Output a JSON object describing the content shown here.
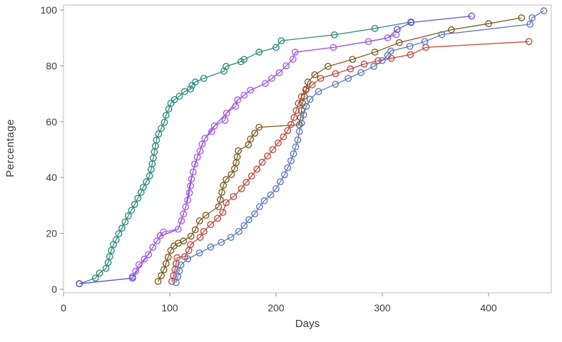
{
  "figure": {
    "xlabel": "Days",
    "ylabel": "Percentage"
  },
  "chart_data": {
    "type": "line",
    "title": "",
    "xlabel": "Days",
    "ylabel": "Percentage",
    "xlim": [
      0,
      460
    ],
    "ylim": [
      0,
      100
    ],
    "xticks": [
      0,
      100,
      200,
      300,
      400
    ],
    "yticks": [
      0,
      20,
      40,
      60,
      80,
      100
    ],
    "grid": false,
    "legend": null,
    "axis_color": "#bcbcbc",
    "tick_color": "#8f8f8f",
    "label_color": "#3b3b3b",
    "marker_style": "open-circle",
    "series": [
      {
        "id": "purple-mid",
        "color": "#6A4BD3",
        "markers": false,
        "points": [
          [
            65,
            4
          ],
          [
            91,
            19
          ],
          [
            108,
            21.5
          ],
          [
            115,
            29.5
          ],
          [
            120,
            39.5
          ],
          [
            126,
            47.3
          ],
          [
            133,
            54
          ],
          [
            142,
            58.5
          ],
          [
            153.5,
            63
          ],
          [
            164,
            67.8
          ],
          [
            176,
            71.3
          ],
          [
            190,
            73.7
          ],
          [
            203,
            77.5
          ],
          [
            216,
            82.4
          ],
          [
            218,
            84.9
          ],
          [
            254,
            86.6
          ],
          [
            287,
            88.7
          ],
          [
            305,
            90
          ],
          [
            314,
            93
          ]
        ]
      },
      {
        "id": "magenta",
        "color": "#A95DE0",
        "markers": true,
        "points": [
          [
            65,
            4.5
          ],
          [
            68,
            6.5
          ],
          [
            71,
            8.8
          ],
          [
            76,
            10.8
          ],
          [
            80,
            12.4
          ],
          [
            84,
            15
          ],
          [
            88,
            17.3
          ],
          [
            91,
            19.2
          ],
          [
            94,
            20.5
          ],
          [
            108,
            21.5
          ],
          [
            111,
            24.5
          ],
          [
            113,
            27
          ],
          [
            115,
            29.5
          ],
          [
            117,
            32
          ],
          [
            118.5,
            34.5
          ],
          [
            119.5,
            37
          ],
          [
            120.5,
            39.5
          ],
          [
            122,
            42
          ],
          [
            123.5,
            44.8
          ],
          [
            126,
            47.3
          ],
          [
            128.5,
            49.5
          ],
          [
            130.5,
            52
          ],
          [
            133,
            54
          ],
          [
            139.5,
            56.5
          ],
          [
            142,
            58.5
          ],
          [
            152,
            60.5
          ],
          [
            153.5,
            63
          ],
          [
            162,
            65.5
          ],
          [
            164,
            67.8
          ],
          [
            170,
            69.5
          ],
          [
            176,
            71.3
          ],
          [
            190,
            73.7
          ],
          [
            196,
            75.5
          ],
          [
            203,
            77.5
          ],
          [
            209.5,
            80
          ],
          [
            216,
            82.4
          ],
          [
            218,
            84.9
          ],
          [
            254,
            86.6
          ],
          [
            287,
            88.7
          ],
          [
            305,
            90
          ],
          [
            313,
            91.2
          ]
        ]
      },
      {
        "id": "teal",
        "color": "#2D8C7F",
        "markers": true,
        "points": [
          [
            15,
            2
          ],
          [
            30,
            4
          ],
          [
            34,
            5.8
          ],
          [
            40,
            7.5
          ],
          [
            42,
            9.6
          ],
          [
            43.5,
            11.7
          ],
          [
            45,
            13.9
          ],
          [
            47,
            16
          ],
          [
            49.5,
            17.7
          ],
          [
            52,
            19.9
          ],
          [
            55,
            21.9
          ],
          [
            58,
            24.1
          ],
          [
            61,
            26.3
          ],
          [
            64,
            28.3
          ],
          [
            67,
            30.4
          ],
          [
            70,
            32.6
          ],
          [
            73,
            34.7
          ],
          [
            75,
            36.5
          ],
          [
            78,
            38.5
          ],
          [
            81,
            40.6
          ],
          [
            82.5,
            42.9
          ],
          [
            83.5,
            44.9
          ],
          [
            84.5,
            47
          ],
          [
            85.5,
            49.2
          ],
          [
            86.5,
            51.3
          ],
          [
            87.5,
            53.4
          ],
          [
            89.5,
            55.6
          ],
          [
            92,
            57.6
          ],
          [
            95,
            59.8
          ],
          [
            96.5,
            62.3
          ],
          [
            99,
            64.5
          ],
          [
            101,
            66.6
          ],
          [
            104.5,
            67.9
          ],
          [
            109,
            69.1
          ],
          [
            114,
            70.8
          ],
          [
            119.5,
            71.7
          ],
          [
            121,
            73
          ],
          [
            124,
            74.2
          ],
          [
            132,
            75.5
          ],
          [
            151,
            78.1
          ],
          [
            153,
            79.8
          ],
          [
            167,
            81.5
          ],
          [
            170,
            82.3
          ],
          [
            184,
            84.9
          ],
          [
            200,
            86.6
          ],
          [
            205,
            89
          ],
          [
            255,
            91.1
          ],
          [
            293,
            93.4
          ],
          [
            327,
            95.7
          ]
        ]
      },
      {
        "id": "brown",
        "color": "#7D5E22",
        "markers": true,
        "points": [
          [
            89,
            2.8
          ],
          [
            92,
            4.9
          ],
          [
            94.5,
            7
          ],
          [
            96.5,
            9.2
          ],
          [
            98.5,
            11.5
          ],
          [
            101,
            13.9
          ],
          [
            104,
            15.5
          ],
          [
            108,
            16.5
          ],
          [
            113,
            17.3
          ],
          [
            120,
            19
          ],
          [
            124,
            21.3
          ],
          [
            128,
            24.5
          ],
          [
            134,
            26.5
          ],
          [
            146,
            29.6
          ],
          [
            147.5,
            32.1
          ],
          [
            149,
            34.7
          ],
          [
            150.5,
            37.2
          ],
          [
            153,
            39.3
          ],
          [
            158,
            41.1
          ],
          [
            161,
            43.2
          ],
          [
            162.5,
            45.3
          ],
          [
            163.5,
            47.4
          ],
          [
            164.5,
            49.6
          ],
          [
            174,
            51.7
          ],
          [
            176,
            53.8
          ],
          [
            180,
            55.9
          ],
          [
            184,
            58
          ],
          [
            222,
            58.9
          ],
          [
            223,
            61.5
          ],
          [
            224,
            64
          ],
          [
            225,
            66.6
          ],
          [
            226.5,
            69.1
          ],
          [
            228.5,
            71.7
          ],
          [
            230,
            74.2
          ],
          [
            236.5,
            76.8
          ],
          [
            249,
            79.8
          ],
          [
            272,
            82.3
          ],
          [
            293,
            84.9
          ],
          [
            316,
            88.3
          ],
          [
            365,
            92.9
          ],
          [
            400,
            95.1
          ],
          [
            431,
            97.2
          ]
        ]
      },
      {
        "id": "red",
        "color": "#BF4A41",
        "markers": true,
        "points": [
          [
            102,
            2.8
          ],
          [
            103.5,
            4.9
          ],
          [
            105,
            7.1
          ],
          [
            106,
            9.2
          ],
          [
            107,
            11.3
          ],
          [
            114,
            11.7
          ],
          [
            118,
            13.9
          ],
          [
            119.5,
            16
          ],
          [
            128.5,
            18.6
          ],
          [
            132,
            20.7
          ],
          [
            138.5,
            23.2
          ],
          [
            145,
            25.4
          ],
          [
            150,
            27.5
          ],
          [
            153,
            31
          ],
          [
            160,
            33.2
          ],
          [
            167.5,
            36
          ],
          [
            172,
            38.3
          ],
          [
            177,
            40.5
          ],
          [
            182,
            43
          ],
          [
            187,
            45.5
          ],
          [
            192,
            47.7
          ],
          [
            197,
            50
          ],
          [
            202,
            52.4
          ],
          [
            207,
            54.6
          ],
          [
            211,
            56.8
          ],
          [
            214,
            59
          ],
          [
            217,
            61.5
          ],
          [
            219,
            64
          ],
          [
            221,
            66.5
          ],
          [
            224,
            69
          ],
          [
            228,
            71.3
          ],
          [
            234,
            73.2
          ],
          [
            242,
            75.5
          ],
          [
            256,
            77.2
          ],
          [
            270,
            78.9
          ],
          [
            283,
            80.6
          ],
          [
            296,
            81.8
          ],
          [
            308.5,
            82.7
          ],
          [
            326.5,
            84
          ],
          [
            341,
            86.6
          ],
          [
            438,
            88.7
          ]
        ]
      },
      {
        "id": "blue",
        "color": "#5E79BE",
        "markers": true,
        "points": [
          [
            106,
            2.4
          ],
          [
            107.5,
            4.5
          ],
          [
            109,
            6.6
          ],
          [
            110.5,
            8.7
          ],
          [
            117,
            10.9
          ],
          [
            128,
            13
          ],
          [
            138.5,
            15.1
          ],
          [
            148.5,
            16.8
          ],
          [
            157.5,
            18.6
          ],
          [
            165,
            20.7
          ],
          [
            170,
            22.8
          ],
          [
            174.5,
            24.9
          ],
          [
            180,
            27
          ],
          [
            184.5,
            29.6
          ],
          [
            189,
            31.7
          ],
          [
            195,
            33.8
          ],
          [
            200,
            36
          ],
          [
            204,
            38.5
          ],
          [
            208,
            41
          ],
          [
            211,
            43.5
          ],
          [
            214,
            46
          ],
          [
            216.5,
            48.5
          ],
          [
            218.5,
            51
          ],
          [
            220.5,
            53.5
          ],
          [
            222,
            56.5
          ],
          [
            224,
            59.5
          ],
          [
            226,
            62.5
          ],
          [
            228.5,
            65.5
          ],
          [
            232,
            68
          ],
          [
            240,
            70.8
          ],
          [
            256,
            73.4
          ],
          [
            268,
            75.5
          ],
          [
            280,
            77.6
          ],
          [
            292,
            79.8
          ],
          [
            300,
            81.9
          ],
          [
            305,
            83.8
          ],
          [
            308,
            85.3
          ],
          [
            326,
            87
          ],
          [
            340,
            88.7
          ],
          [
            356,
            91.2
          ],
          [
            439,
            94.9
          ],
          [
            441,
            97.2
          ],
          [
            452,
            99.7
          ]
        ]
      },
      {
        "id": "purple-start",
        "color": "#6A4BD3",
        "markers": true,
        "points": [
          [
            15,
            2
          ],
          [
            65,
            4
          ]
        ]
      },
      {
        "id": "purple-end",
        "color": "#6A4BD3",
        "markers": true,
        "points": [
          [
            314,
            93
          ],
          [
            327,
            95.5
          ],
          [
            384,
            97.8
          ]
        ]
      }
    ]
  }
}
